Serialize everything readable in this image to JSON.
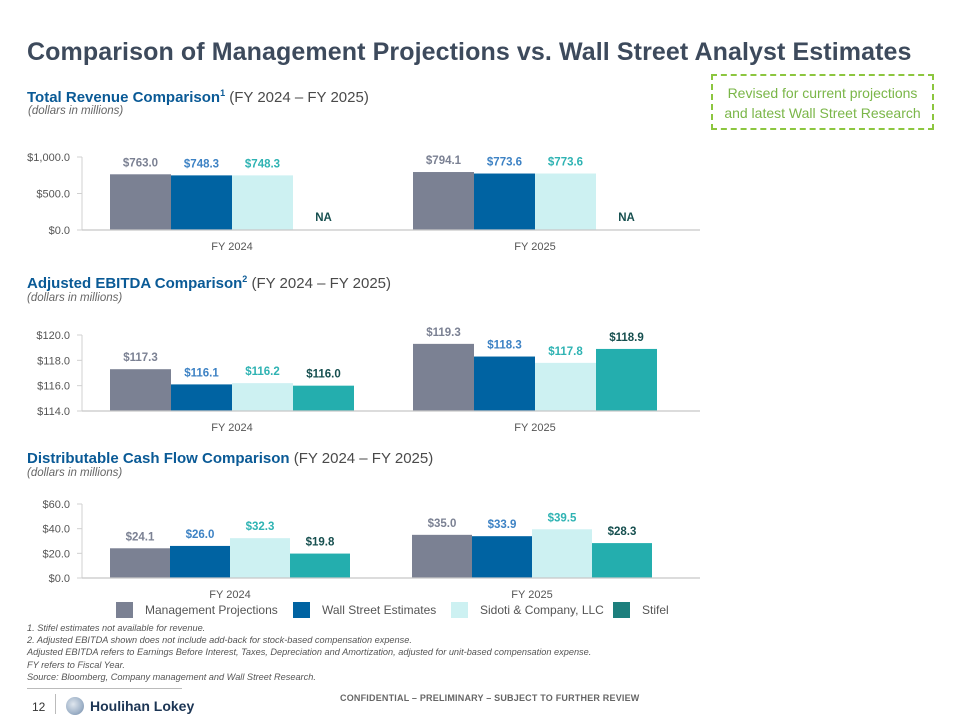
{
  "page": {
    "title": "Comparison of Management Projections vs. Wall Street Analyst Estimates",
    "callout": [
      "Revised for current projections",
      "and latest Wall Street Research"
    ],
    "colors": {
      "management": "#7b8193",
      "wall_street": "#0063a2",
      "sidoti": "#cdf1f2",
      "stifel": "#24aeae",
      "stifel_legend": "#1d7f7d",
      "callout": "#8cc63f",
      "heading_blue": "#0a5a96"
    },
    "sections": [
      {
        "heading_bold": "Total Revenue Comparison",
        "sup": "1",
        "heading_rest": " (FY 2024 – FY 2025)",
        "sub": "(dollars in millions)"
      },
      {
        "heading_bold": "Adjusted EBITDA Comparison",
        "sup": "2",
        "heading_rest": " (FY 2024 – FY 2025)",
        "sub": "(dollars in millions)"
      },
      {
        "heading_bold": "Distributable Cash Flow Comparison",
        "sup": "",
        "heading_rest": " (FY 2024 – FY 2025)",
        "sub": "(dollars in millions)"
      }
    ],
    "legend": [
      "Management Projections",
      "Wall Street Estimates",
      "Sidoti & Company, LLC",
      "Stifel"
    ],
    "notes": [
      "1. Stifel estimates not available for revenue.",
      "2. Adjusted EBITDA shown does not include add-back for stock-based compensation expense.",
      "Adjusted EBITDA refers to Earnings Before Interest, Taxes, Depreciation and Amortization, adjusted for unit-based compensation expense.",
      "FY refers to Fiscal Year.",
      "Source: Bloomberg, Company management and Wall Street Research."
    ],
    "footer": {
      "page_number": "12",
      "company": "Houlihan Lokey",
      "confidential": "CONFIDENTIAL – PRELIMINARY – SUBJECT TO FURTHER REVIEW"
    }
  },
  "chart_data": [
    {
      "type": "bar",
      "title": "Total Revenue Comparison (FY 2024 – FY 2025)",
      "ylabel": "dollars in millions",
      "categories": [
        "FY 2024",
        "FY 2025"
      ],
      "ylim": [
        0,
        1000
      ],
      "yticks": [
        0,
        500,
        1000
      ],
      "ytick_labels": [
        "$0.0",
        "$500.0",
        "$1,000.0"
      ],
      "series": [
        {
          "name": "Management Projections",
          "values": [
            763.0,
            794.1
          ],
          "labels": [
            "$763.0",
            "$794.1"
          ]
        },
        {
          "name": "Wall Street Estimates",
          "values": [
            748.3,
            773.6
          ],
          "labels": [
            "$748.3",
            "$773.6"
          ]
        },
        {
          "name": "Sidoti & Company, LLC",
          "values": [
            748.3,
            773.6
          ],
          "labels": [
            "$748.3",
            "$773.6"
          ]
        },
        {
          "name": "Stifel",
          "values": [
            null,
            null
          ],
          "labels": [
            "NA",
            "NA"
          ]
        }
      ],
      "legend": "bottom"
    },
    {
      "type": "bar",
      "title": "Adjusted EBITDA Comparison (FY 2024 – FY 2025)",
      "ylabel": "dollars in millions",
      "categories": [
        "FY 2024",
        "FY 2025"
      ],
      "ylim": [
        114,
        120
      ],
      "yticks": [
        114,
        116,
        118,
        120
      ],
      "ytick_labels": [
        "$114.0",
        "$116.0",
        "$118.0",
        "$120.0"
      ],
      "series": [
        {
          "name": "Management Projections",
          "values": [
            117.3,
            119.3
          ],
          "labels": [
            "$117.3",
            "$119.3"
          ]
        },
        {
          "name": "Wall Street Estimates",
          "values": [
            116.1,
            118.3
          ],
          "labels": [
            "$116.1",
            "$118.3"
          ]
        },
        {
          "name": "Sidoti & Company, LLC",
          "values": [
            116.2,
            117.8
          ],
          "labels": [
            "$116.2",
            "$117.8"
          ]
        },
        {
          "name": "Stifel",
          "values": [
            116.0,
            118.9
          ],
          "labels": [
            "$116.0",
            "$118.9"
          ]
        }
      ],
      "legend": "bottom"
    },
    {
      "type": "bar",
      "title": "Distributable Cash Flow Comparison (FY 2024 – FY 2025)",
      "ylabel": "dollars in millions",
      "categories": [
        "FY 2024",
        "FY 2025"
      ],
      "ylim": [
        0,
        60
      ],
      "yticks": [
        0,
        20,
        40,
        60
      ],
      "ytick_labels": [
        "$0.0",
        "$20.0",
        "$40.0",
        "$60.0"
      ],
      "series": [
        {
          "name": "Management Projections",
          "values": [
            24.1,
            35.0
          ],
          "labels": [
            "$24.1",
            "$35.0"
          ]
        },
        {
          "name": "Wall Street Estimates",
          "values": [
            26.0,
            33.9
          ],
          "labels": [
            "$26.0",
            "$33.9"
          ]
        },
        {
          "name": "Sidoti & Company, LLC",
          "values": [
            32.3,
            39.5
          ],
          "labels": [
            "$32.3",
            "$39.5"
          ]
        },
        {
          "name": "Stifel",
          "values": [
            19.8,
            28.3
          ],
          "labels": [
            "$19.8",
            "$28.3"
          ]
        }
      ],
      "legend": "bottom"
    }
  ]
}
